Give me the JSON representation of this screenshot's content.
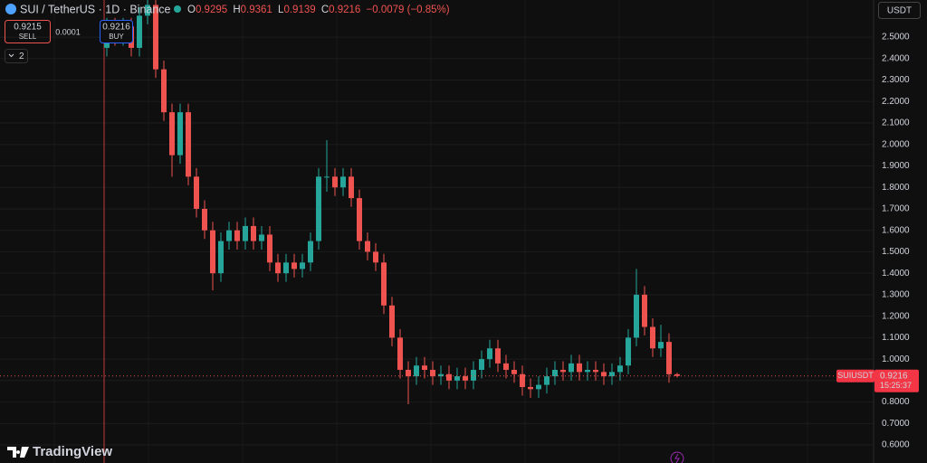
{
  "ui": {
    "symbol": "SUI / TetherUS · 1D · Binance",
    "o": "O",
    "h": "H",
    "l": "L",
    "c": "C",
    "change": "−0.0079 (−0.85%)",
    "sell_price": "0.9215",
    "sell": "SELL",
    "spread": "0.0001",
    "buy_price": "0.9216",
    "buy": "BUY",
    "indicators": "2",
    "currency": "USDT",
    "countdown": "15:25:37",
    "logo": "TradingView"
  },
  "chart_data": {
    "type": "candlestick",
    "series": [
      {
        "name": "SUIUSDT",
        "up_color": "#26a69a",
        "down_color": "#ef5350",
        "open": [
          2.45,
          2.55,
          2.5,
          2.55,
          2.45,
          2.6,
          2.65,
          2.35,
          2.15,
          1.95,
          2.15,
          1.85,
          1.7,
          1.6,
          1.4,
          1.55,
          1.6,
          1.55,
          1.62,
          1.55,
          1.58,
          1.45,
          1.4,
          1.45,
          1.42,
          1.45,
          1.55,
          1.85,
          1.85,
          1.8,
          1.85,
          1.75,
          1.55,
          1.5,
          1.45,
          1.25,
          1.1,
          0.95,
          0.92,
          0.97,
          0.95,
          0.92,
          0.93,
          0.9,
          0.92,
          0.9,
          0.95,
          1.0,
          1.05,
          0.98,
          0.95,
          0.93,
          0.87,
          0.86,
          0.88,
          0.92,
          0.95,
          0.94,
          0.98,
          0.94,
          0.95,
          0.94,
          0.92,
          0.94,
          0.97,
          1.1,
          1.3,
          1.15,
          1.05,
          1.08,
          0.9295
        ],
        "high": [
          2.59,
          2.59,
          2.59,
          2.59,
          2.64,
          2.69,
          2.69,
          2.39,
          2.19,
          2.19,
          2.19,
          1.89,
          1.74,
          1.64,
          1.59,
          1.64,
          1.64,
          1.66,
          1.66,
          1.62,
          1.62,
          1.49,
          1.49,
          1.49,
          1.49,
          1.59,
          1.89,
          2.02,
          1.89,
          1.89,
          1.89,
          1.79,
          1.59,
          1.54,
          1.49,
          1.29,
          1.14,
          0.99,
          1.01,
          1.01,
          0.99,
          0.97,
          0.97,
          0.96,
          0.96,
          0.99,
          1.04,
          1.09,
          1.09,
          1.02,
          0.99,
          0.97,
          0.91,
          0.92,
          0.96,
          0.99,
          0.99,
          1.02,
          1.02,
          0.99,
          0.99,
          0.98,
          0.98,
          1.01,
          1.14,
          1.42,
          1.34,
          1.19,
          1.16,
          1.12,
          0.9361
        ],
        "low": [
          2.41,
          2.46,
          2.46,
          2.41,
          2.41,
          2.56,
          2.31,
          2.11,
          1.85,
          1.91,
          1.81,
          1.66,
          1.56,
          1.32,
          1.36,
          1.51,
          1.51,
          1.51,
          1.51,
          1.51,
          1.41,
          1.36,
          1.36,
          1.38,
          1.38,
          1.41,
          1.51,
          1.78,
          1.76,
          1.76,
          1.71,
          1.51,
          1.46,
          1.41,
          1.21,
          1.06,
          0.91,
          0.79,
          0.88,
          0.91,
          0.88,
          0.88,
          0.86,
          0.86,
          0.86,
          0.86,
          0.91,
          0.96,
          0.94,
          0.91,
          0.89,
          0.83,
          0.82,
          0.82,
          0.84,
          0.88,
          0.9,
          0.9,
          0.9,
          0.9,
          0.9,
          0.88,
          0.88,
          0.9,
          0.93,
          1.06,
          1.11,
          1.01,
          1.01,
          0.89,
          0.9139
        ],
        "close": [
          2.55,
          2.5,
          2.55,
          2.45,
          2.6,
          2.65,
          2.35,
          2.15,
          1.95,
          2.15,
          1.85,
          1.7,
          1.6,
          1.4,
          1.55,
          1.6,
          1.55,
          1.62,
          1.55,
          1.58,
          1.45,
          1.4,
          1.45,
          1.42,
          1.45,
          1.55,
          1.85,
          1.85,
          1.8,
          1.85,
          1.75,
          1.55,
          1.5,
          1.45,
          1.25,
          1.1,
          0.95,
          0.92,
          0.97,
          0.95,
          0.92,
          0.93,
          0.9,
          0.92,
          0.9,
          0.95,
          1.0,
          1.05,
          0.98,
          0.95,
          0.93,
          0.87,
          0.86,
          0.88,
          0.92,
          0.95,
          0.94,
          0.98,
          0.94,
          0.95,
          0.94,
          0.92,
          0.94,
          0.97,
          1.1,
          1.3,
          1.15,
          1.05,
          1.08,
          0.9295,
          0.9216
        ]
      }
    ],
    "ylim": [
      0.516,
      2.673
    ],
    "yticks": [
      {
        "value": 0.6,
        "label": "0.6000"
      },
      {
        "value": 0.7,
        "label": "0.7000"
      },
      {
        "value": 0.8,
        "label": "0.8000"
      },
      {
        "value": 0.9,
        "label": "0.9000"
      },
      {
        "value": 1.0,
        "label": "1.0000"
      },
      {
        "value": 1.1,
        "label": "1.1000"
      },
      {
        "value": 1.2,
        "label": "1.2000"
      },
      {
        "value": 1.3,
        "label": "1.3000"
      },
      {
        "value": 1.4,
        "label": "1.4000"
      },
      {
        "value": 1.5,
        "label": "1.5000"
      },
      {
        "value": 1.6,
        "label": "1.6000"
      },
      {
        "value": 1.7,
        "label": "1.7000"
      },
      {
        "value": 1.8,
        "label": "1.8000"
      },
      {
        "value": 1.9,
        "label": "1.9000"
      },
      {
        "value": 2.0,
        "label": "2.0000"
      },
      {
        "value": 2.1,
        "label": "2.1000"
      },
      {
        "value": 2.2,
        "label": "2.2000"
      },
      {
        "value": 2.3,
        "label": "2.3000"
      },
      {
        "value": 2.4,
        "label": "2.4000"
      },
      {
        "value": 2.5,
        "label": "2.5000"
      }
    ],
    "grid": true
  }
}
